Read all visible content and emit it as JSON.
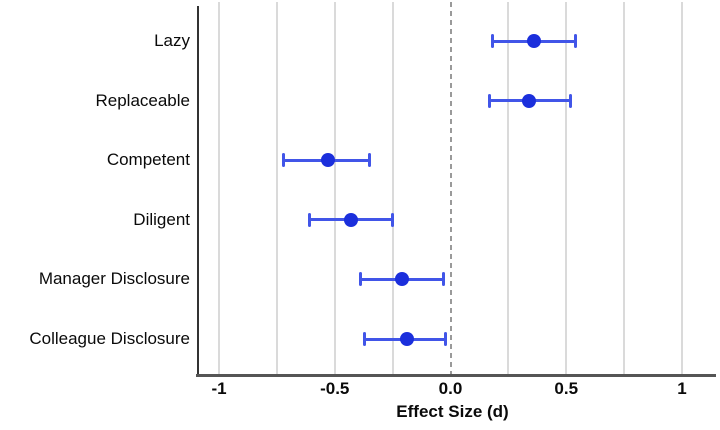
{
  "chart_data": {
    "type": "scatter",
    "variant": "forest-plot-with-error-bars",
    "title": "",
    "xlabel": "Effect Size (d)",
    "ylabel": "",
    "categories": [
      "Lazy",
      "Replaceable",
      "Competent",
      "Diligent",
      "Manager Disclosure",
      "Colleague Disclosure"
    ],
    "points": [
      {
        "label": "Lazy",
        "value": 0.36,
        "ci_low": 0.18,
        "ci_high": 0.54
      },
      {
        "label": "Replaceable",
        "value": 0.34,
        "ci_low": 0.17,
        "ci_high": 0.52
      },
      {
        "label": "Competent",
        "value": -0.53,
        "ci_low": -0.72,
        "ci_high": -0.35
      },
      {
        "label": "Diligent",
        "value": -0.43,
        "ci_low": -0.61,
        "ci_high": -0.25
      },
      {
        "label": "Manager Disclosure",
        "value": -0.21,
        "ci_low": -0.39,
        "ci_high": -0.03
      },
      {
        "label": "Colleague Disclosure",
        "value": -0.19,
        "ci_low": -0.37,
        "ci_high": -0.02
      }
    ],
    "x_ticks": [
      {
        "value": -1,
        "label": "-1"
      },
      {
        "value": -0.5,
        "label": "-0.5"
      },
      {
        "value": 0,
        "label": "0.0"
      },
      {
        "value": 0.5,
        "label": "0.5"
      },
      {
        "value": 1,
        "label": "1"
      }
    ],
    "x_gridline_step": 0.25,
    "xlim": [
      -1.09,
      1.15
    ],
    "zero_line": {
      "value": 0,
      "style": "dashed"
    },
    "grid": "vertical-only",
    "legend": "none",
    "colors": {
      "point": "#1b2fdc",
      "error_bar": "#4155e8",
      "gridline": "#dadada",
      "zero_line": "#9a9a9a",
      "y_axis": "#333333",
      "x_axis": "#555555",
      "text": "#0a0a0a",
      "background": "#ffffff"
    }
  }
}
